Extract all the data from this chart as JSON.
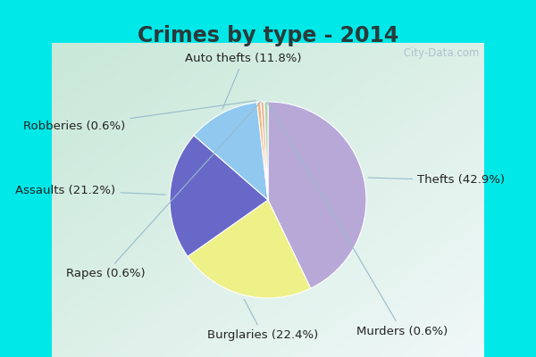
{
  "title": "Crimes by type - 2014",
  "slices": [
    {
      "label": "Thefts",
      "pct": 42.9,
      "color": "#b8a8d8"
    },
    {
      "label": "Burglaries",
      "pct": 22.4,
      "color": "#eef088"
    },
    {
      "label": "Assaults",
      "pct": 21.2,
      "color": "#6868c8"
    },
    {
      "label": "Auto thefts",
      "pct": 11.8,
      "color": "#90c8f0"
    },
    {
      "label": "Robberies",
      "pct": 0.6,
      "color": "#f0b878"
    },
    {
      "label": "Rapes",
      "pct": 0.6,
      "color": "#f0b8a8"
    },
    {
      "label": "Murders",
      "pct": 0.6,
      "color": "#a8d8a8"
    }
  ],
  "title_color": "#2a3a3a",
  "title_fontsize": 17,
  "label_fontsize": 9.5,
  "label_color": "#222222",
  "outer_bg": "#00e8e8",
  "startangle": 90,
  "watermark": " City-Data.com",
  "title_bg": "#00e8e8",
  "chart_bg_topleft": "#c8e8d8",
  "chart_bg_bottomright": "#e8f4f0"
}
